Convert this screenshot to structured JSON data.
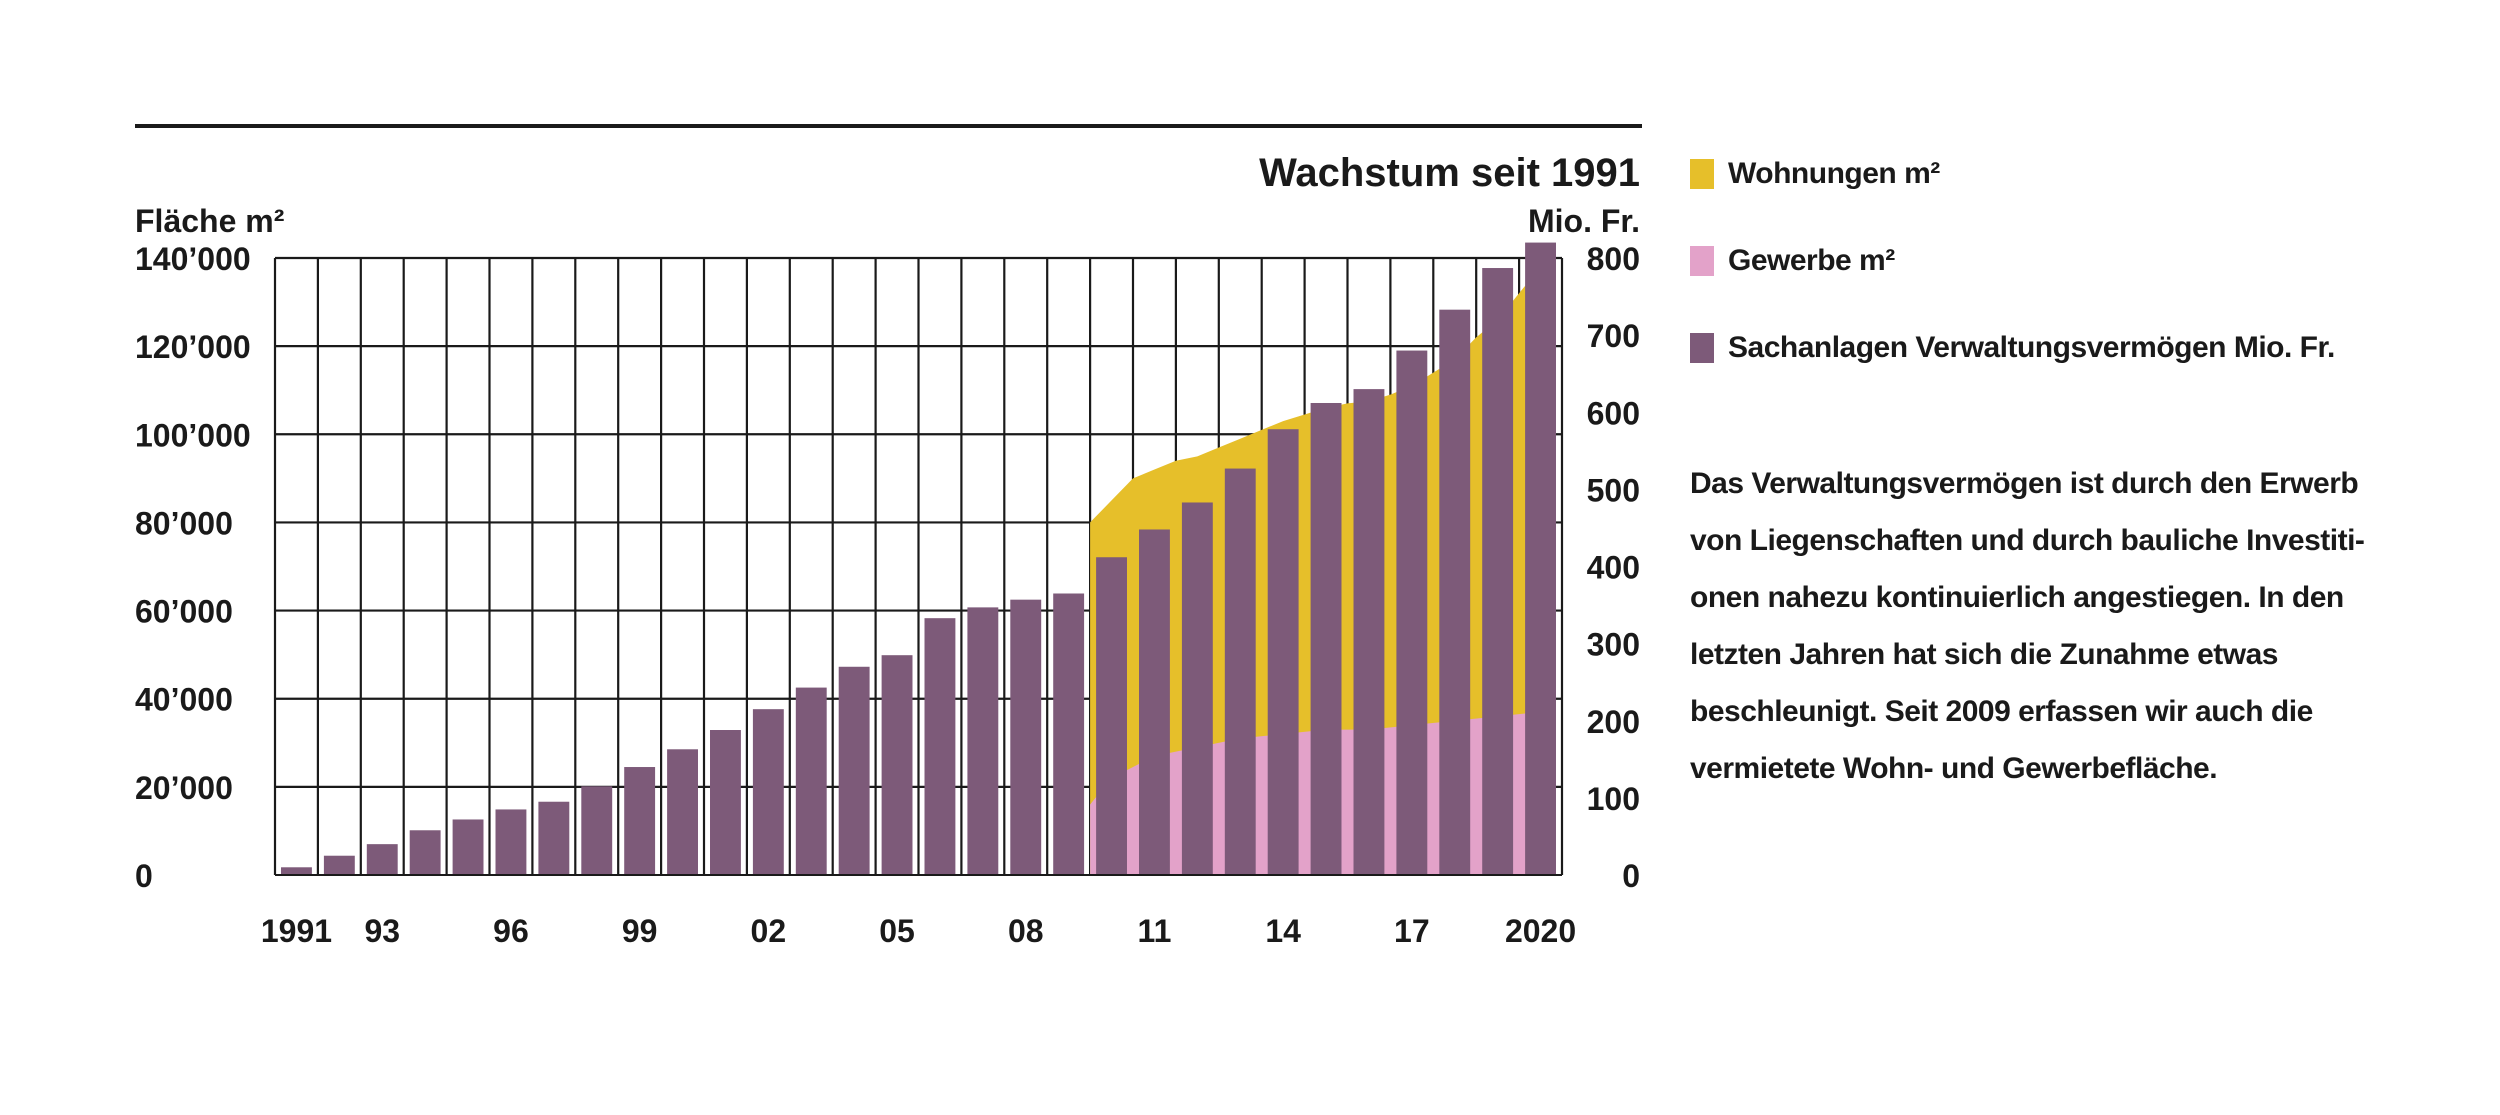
{
  "chart_data": {
    "type": "bar",
    "title": "Wachstum seit 1991",
    "ylabel_left": "Fläche m²",
    "ylabel_right": "Mio. Fr.",
    "ylim_left": [
      0,
      140000
    ],
    "ylim_right": [
      0,
      800
    ],
    "grid": true,
    "x": [
      1991,
      1992,
      1993,
      1994,
      1995,
      1996,
      1997,
      1998,
      1999,
      2000,
      2001,
      2002,
      2003,
      2004,
      2005,
      2006,
      2007,
      2008,
      2009,
      2010,
      2011,
      2012,
      2013,
      2014,
      2015,
      2016,
      2017,
      2018,
      2019,
      2020
    ],
    "x_tick_labels": {
      "1991": "1991",
      "1993": "93",
      "1996": "96",
      "1999": "99",
      "2002": "02",
      "2005": "05",
      "2008": "08",
      "2011": "11",
      "2014": "14",
      "2017": "17",
      "2020": "2020"
    },
    "y_left_ticks": [
      "0",
      "20’000",
      "40’000",
      "60’000",
      "80’000",
      "100’000",
      "120’000",
      "140’000"
    ],
    "y_right_ticks": [
      "0",
      "100",
      "200",
      "300",
      "400",
      "500",
      "600",
      "700",
      "800"
    ],
    "series": [
      {
        "name": "Wohnungen m²",
        "kind": "area",
        "axis": "left",
        "color": "#e6bf2a",
        "x": [
          2009.5,
          2010,
          2010.5,
          2011,
          2011.5,
          2012,
          2012.5,
          2013,
          2013.5,
          2014,
          2014.5,
          2015,
          2015.5,
          2016,
          2016.5,
          2017,
          2017.5,
          2018,
          2018.5,
          2019,
          2019.5,
          2020
        ],
        "values": [
          80000,
          85000,
          90000,
          92000,
          94000,
          95000,
          97000,
          99000,
          101000,
          103000,
          104500,
          106000,
          107000,
          107500,
          109000,
          111000,
          114000,
          117000,
          122000,
          126000,
          132000,
          138000
        ]
      },
      {
        "name": "Gewerbe m²",
        "kind": "area",
        "axis": "left",
        "color": "#e3a2c9",
        "x": [
          2009.5,
          2010,
          2011,
          2012,
          2013,
          2014,
          2015,
          2016,
          2017,
          2018,
          2019,
          2020
        ],
        "values": [
          16000,
          22000,
          27000,
          29000,
          31000,
          32000,
          33000,
          33000,
          34000,
          35000,
          36000,
          37000
        ]
      },
      {
        "name": "Sachanlagen Verwaltungsvermögen Mio. Fr.",
        "kind": "bar",
        "axis": "right",
        "color": "#7d5a79",
        "values": [
          10,
          25,
          40,
          58,
          72,
          85,
          95,
          115,
          140,
          163,
          188,
          215,
          243,
          270,
          285,
          333,
          347,
          357,
          365,
          412,
          448,
          483,
          527,
          578,
          612,
          630,
          680,
          733,
          787,
          820
        ]
      }
    ]
  },
  "note": "Das Verwaltungsvermögen ist durch den Erwerb\nvon Liegenschaften und durch bauliche Investiti-\nonen nahezu kontinuierlich angestiegen. In den\nletzten Jahren hat sich die Zunahme etwas\nbeschleunigt. Seit 2009 erfassen wir auch die\nvermietete Wohn- und Gewerbefläche."
}
